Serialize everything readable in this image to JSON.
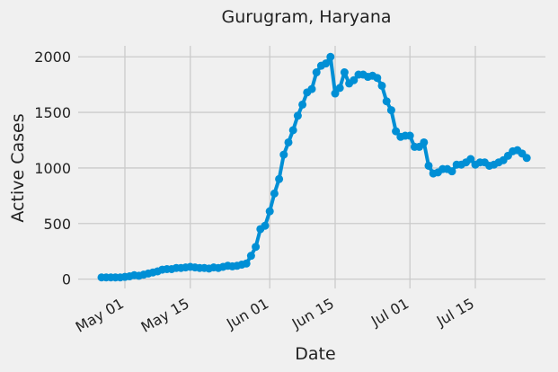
{
  "chart_data": {
    "type": "line",
    "title": "Gurugram, Haryana",
    "xlabel": "Date",
    "ylabel": "Active Cases",
    "x": [
      "04-26",
      "04-27",
      "04-28",
      "04-29",
      "04-30",
      "05-01",
      "05-02",
      "05-03",
      "05-04",
      "05-05",
      "05-06",
      "05-07",
      "05-08",
      "05-09",
      "05-10",
      "05-11",
      "05-12",
      "05-13",
      "05-14",
      "05-15",
      "05-16",
      "05-17",
      "05-18",
      "05-19",
      "05-20",
      "05-21",
      "05-22",
      "05-23",
      "05-24",
      "05-25",
      "05-26",
      "05-27",
      "05-28",
      "05-29",
      "05-30",
      "05-31",
      "06-01",
      "06-02",
      "06-03",
      "06-04",
      "06-05",
      "06-06",
      "06-07",
      "06-08",
      "06-09",
      "06-10",
      "06-11",
      "06-12",
      "06-13",
      "06-14",
      "06-15",
      "06-16",
      "06-17",
      "06-18",
      "06-19",
      "06-20",
      "06-21",
      "06-22",
      "06-23",
      "06-24",
      "06-25",
      "06-26",
      "06-27",
      "06-28",
      "06-29",
      "06-30",
      "07-01",
      "07-02",
      "07-03",
      "07-04",
      "07-05",
      "07-06",
      "07-07",
      "07-08",
      "07-09",
      "07-10",
      "07-11",
      "07-12",
      "07-13",
      "07-14",
      "07-15",
      "07-16",
      "07-17",
      "07-18",
      "07-19",
      "07-20",
      "07-21",
      "07-22",
      "07-23",
      "07-24",
      "07-25",
      "07-26"
    ],
    "series": [
      {
        "name": "Active Cases",
        "color": "#008fd5",
        "values": [
          15,
          15,
          15,
          15,
          15,
          20,
          25,
          35,
          30,
          40,
          50,
          60,
          70,
          85,
          90,
          90,
          100,
          100,
          105,
          110,
          105,
          100,
          100,
          95,
          105,
          100,
          110,
          120,
          115,
          120,
          130,
          140,
          210,
          290,
          450,
          480,
          610,
          770,
          900,
          1120,
          1230,
          1340,
          1470,
          1570,
          1680,
          1710,
          1860,
          1920,
          1940,
          2000,
          1670,
          1720,
          1860,
          1760,
          1790,
          1840,
          1840,
          1820,
          1830,
          1810,
          1740,
          1600,
          1520,
          1330,
          1280,
          1290,
          1290,
          1190,
          1190,
          1230,
          1020,
          950,
          960,
          990,
          990,
          970,
          1030,
          1030,
          1050,
          1080,
          1030,
          1050,
          1050,
          1020,
          1030,
          1050,
          1070,
          1110,
          1150,
          1160,
          1130,
          1090
        ]
      }
    ],
    "xlim": [
      "04-21",
      "07-30"
    ],
    "xticks": [
      {
        "value": "05-01",
        "label": "May 01"
      },
      {
        "value": "05-15",
        "label": "May 15"
      },
      {
        "value": "06-01",
        "label": "Jun 01"
      },
      {
        "value": "06-15",
        "label": "Jun 15"
      },
      {
        "value": "07-01",
        "label": "Jul 01"
      },
      {
        "value": "07-15",
        "label": "Jul 15"
      }
    ],
    "ylim": [
      -84,
      2099
    ],
    "yticks": [
      0,
      500,
      1000,
      1500,
      2000
    ],
    "grid": true
  }
}
